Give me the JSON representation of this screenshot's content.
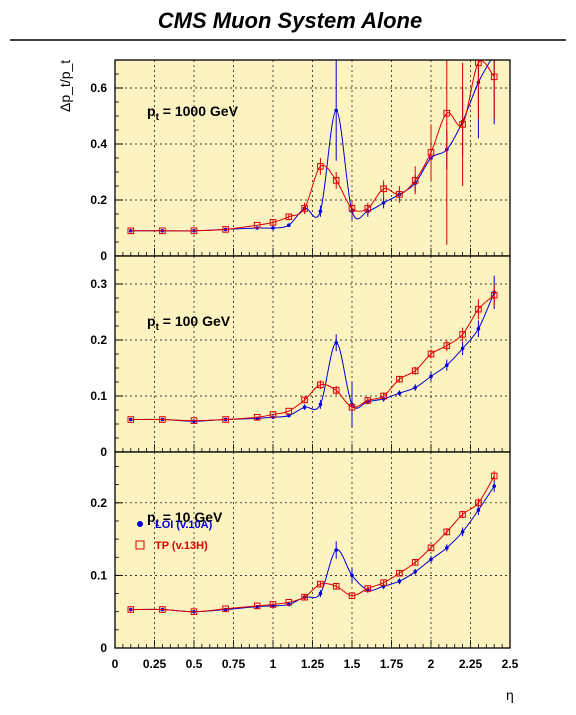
{
  "title": "CMS Muon System Alone",
  "colors": {
    "frame_bg": "#fdf3c0",
    "series_a": "#0000dd",
    "series_b": "#dd0000",
    "grid": "#000000"
  },
  "chart_data": {
    "type": "line",
    "xlabel": "η",
    "ylabel": "Δp_t/p_t",
    "xlim": [
      0,
      2.5
    ],
    "xticks": [
      "0",
      "0.25",
      "0.5",
      "0.75",
      "1",
      "1.25",
      "1.5",
      "1.75",
      "2",
      "2.25",
      "2.5"
    ],
    "legend": {
      "placement": "left-bottom-panel",
      "entries": [
        "LOI (v.10A)",
        "TP  (v.13H)"
      ]
    },
    "panels": [
      {
        "label_main": "p",
        "label_sub": "t",
        "label_rest": " = 1000 GeV",
        "ylim": [
          0,
          0.7
        ],
        "yticks": [
          "0",
          "0.2",
          "0.4",
          "0.6"
        ],
        "ytick_values": [
          0,
          0.2,
          0.4,
          0.6
        ],
        "series": [
          {
            "name": "LOI (v.10A)",
            "marker": "dot",
            "x": [
              0.1,
              0.3,
              0.5,
              0.7,
              0.9,
              1.0,
              1.1,
              1.2,
              1.3,
              1.4,
              1.5,
              1.6,
              1.7,
              1.8,
              1.9,
              2.0,
              2.1,
              2.2,
              2.3,
              2.4
            ],
            "y": [
              0.09,
              0.09,
              0.09,
              0.095,
              0.1,
              0.1,
              0.11,
              0.17,
              0.16,
              0.52,
              0.16,
              0.16,
              0.19,
              0.22,
              0.26,
              0.35,
              0.38,
              0.48,
              0.62,
              0.72
            ],
            "err": [
              0,
              0,
              0,
              0,
              0,
              0,
              0,
              0.02,
              0.02,
              0.18,
              0.03,
              0.02,
              0.02,
              0.02,
              0.03,
              0.04,
              0.07,
              0.12,
              0.2,
              0.25
            ]
          },
          {
            "name": "TP  (v.13H)",
            "marker": "square",
            "x": [
              0.1,
              0.3,
              0.5,
              0.7,
              0.9,
              1.0,
              1.1,
              1.2,
              1.3,
              1.4,
              1.5,
              1.6,
              1.7,
              1.8,
              1.9,
              2.0,
              2.1,
              2.2,
              2.3,
              2.4
            ],
            "y": [
              0.09,
              0.09,
              0.09,
              0.095,
              0.11,
              0.12,
              0.14,
              0.17,
              0.32,
              0.27,
              0.17,
              0.17,
              0.24,
              0.22,
              0.27,
              0.37,
              0.51,
              0.47,
              0.69,
              0.64
            ],
            "err": [
              0,
              0,
              0,
              0,
              0,
              0.01,
              0.01,
              0.02,
              0.03,
              0.03,
              0.03,
              0.02,
              0.03,
              0.03,
              0.05,
              0.1,
              0.47,
              0.22,
              0.2,
              0.15
            ]
          }
        ]
      },
      {
        "label_main": "p",
        "label_sub": "t",
        "label_rest": " = 100 GeV",
        "ylim": [
          0,
          0.35
        ],
        "yticks": [
          "0",
          "0.1",
          "0.2",
          "0.3"
        ],
        "ytick_values": [
          0,
          0.1,
          0.2,
          0.3
        ],
        "series": [
          {
            "name": "LOI (v.10A)",
            "marker": "dot",
            "x": [
              0.1,
              0.3,
              0.5,
              0.7,
              0.9,
              1.0,
              1.1,
              1.2,
              1.3,
              1.4,
              1.5,
              1.6,
              1.7,
              1.8,
              1.9,
              2.0,
              2.1,
              2.2,
              2.3,
              2.4
            ],
            "y": [
              0.058,
              0.058,
              0.055,
              0.058,
              0.06,
              0.062,
              0.065,
              0.08,
              0.085,
              0.195,
              0.085,
              0.09,
              0.095,
              0.105,
              0.115,
              0.135,
              0.155,
              0.185,
              0.22,
              0.285
            ],
            "err": [
              0,
              0,
              0,
              0,
              0,
              0,
              0,
              0.005,
              0.008,
              0.015,
              0.04,
              0.005,
              0.005,
              0.005,
              0.006,
              0.008,
              0.01,
              0.012,
              0.015,
              0.03
            ]
          },
          {
            "name": "TP  (v.13H)",
            "marker": "square",
            "x": [
              0.1,
              0.3,
              0.5,
              0.7,
              0.9,
              1.0,
              1.1,
              1.2,
              1.3,
              1.4,
              1.5,
              1.6,
              1.7,
              1.8,
              1.9,
              2.0,
              2.1,
              2.2,
              2.3,
              2.4
            ],
            "y": [
              0.058,
              0.058,
              0.056,
              0.058,
              0.062,
              0.067,
              0.073,
              0.093,
              0.12,
              0.11,
              0.08,
              0.092,
              0.1,
              0.13,
              0.145,
              0.175,
              0.19,
              0.21,
              0.255,
              0.28
            ],
            "err": [
              0,
              0,
              0,
              0,
              0,
              0,
              0,
              0.005,
              0.008,
              0.008,
              0.006,
              0.005,
              0.006,
              0.006,
              0.007,
              0.008,
              0.01,
              0.012,
              0.018,
              0.02
            ]
          }
        ]
      },
      {
        "label_main": "p",
        "label_sub": "t",
        "label_rest": " = 10 GeV",
        "ylim": [
          0,
          0.27
        ],
        "yticks": [
          "0",
          "0.1",
          "0.2"
        ],
        "ytick_values": [
          0,
          0.1,
          0.2
        ],
        "series": [
          {
            "name": "LOI (v.10A)",
            "marker": "dot",
            "x": [
              0.1,
              0.3,
              0.5,
              0.7,
              0.9,
              1.0,
              1.1,
              1.2,
              1.3,
              1.4,
              1.5,
              1.6,
              1.7,
              1.8,
              1.9,
              2.0,
              2.1,
              2.2,
              2.3,
              2.4
            ],
            "y": [
              0.053,
              0.053,
              0.05,
              0.053,
              0.057,
              0.058,
              0.06,
              0.07,
              0.075,
              0.135,
              0.1,
              0.08,
              0.085,
              0.092,
              0.105,
              0.122,
              0.138,
              0.16,
              0.19,
              0.223
            ],
            "err": [
              0,
              0,
              0,
              0,
              0,
              0,
              0,
              0.004,
              0.005,
              0.012,
              0.01,
              0.004,
              0.004,
              0.004,
              0.004,
              0.005,
              0.005,
              0.006,
              0.007,
              0.008
            ]
          },
          {
            "name": "TP  (v.13H)",
            "marker": "square",
            "x": [
              0.1,
              0.3,
              0.5,
              0.7,
              0.9,
              1.0,
              1.1,
              1.2,
              1.3,
              1.4,
              1.5,
              1.6,
              1.7,
              1.8,
              1.9,
              2.0,
              2.1,
              2.2,
              2.3,
              2.4
            ],
            "y": [
              0.053,
              0.053,
              0.05,
              0.054,
              0.058,
              0.06,
              0.063,
              0.07,
              0.088,
              0.085,
              0.072,
              0.082,
              0.09,
              0.103,
              0.118,
              0.138,
              0.16,
              0.184,
              0.2,
              0.237
            ],
            "err": [
              0,
              0,
              0,
              0,
              0,
              0,
              0,
              0.003,
              0.004,
              0.004,
              0.003,
              0.003,
              0.003,
              0.004,
              0.004,
              0.004,
              0.005,
              0.005,
              0.006,
              0.007
            ]
          }
        ]
      }
    ]
  }
}
